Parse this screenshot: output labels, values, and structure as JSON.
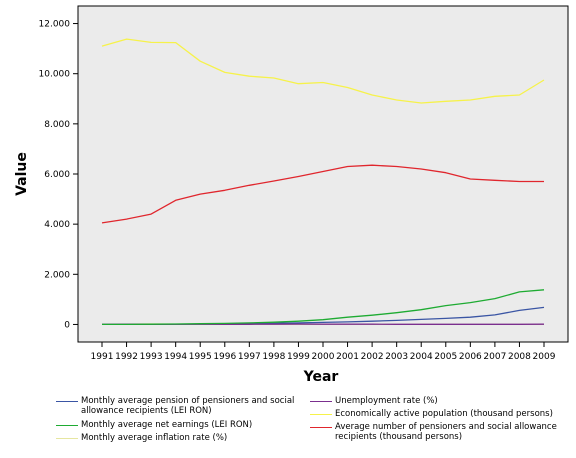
{
  "chart_data": {
    "type": "line",
    "xlabel": "Year",
    "ylabel": "Value",
    "x": [
      1991,
      1992,
      1993,
      1994,
      1995,
      1996,
      1997,
      1998,
      1999,
      2000,
      2001,
      2002,
      2003,
      2004,
      2005,
      2006,
      2007,
      2008,
      2009
    ],
    "ylim": [
      -700,
      12700
    ],
    "yticks": [
      0,
      2000,
      4000,
      6000,
      8000,
      10000,
      12000
    ],
    "ytick_labels": [
      "0",
      "2.000",
      "4.000",
      "6.000",
      "8.000",
      "10.000",
      "12.000"
    ],
    "plot_background": "#ebebeb",
    "series": [
      {
        "name": "Monthly average pension of pensioners and social allowance recipients (LEI RON)",
        "color": "#3a55a4",
        "values": [
          1,
          2,
          5,
          8,
          12,
          18,
          28,
          45,
          60,
          80,
          100,
          130,
          160,
          200,
          240,
          290,
          380,
          560,
          680
        ]
      },
      {
        "name": "Unemployment rate (%)",
        "color": "#7b2f8f",
        "values": [
          3,
          8,
          10,
          11,
          10,
          7,
          7,
          10,
          12,
          11,
          9,
          8,
          7,
          6,
          6,
          5,
          4,
          4,
          8
        ]
      },
      {
        "name": "Monthly average net earnings (LEI RON)",
        "color": "#1eab32",
        "values": [
          2,
          3,
          8,
          18,
          28,
          40,
          60,
          90,
          130,
          190,
          290,
          370,
          470,
          590,
          750,
          870,
          1030,
          1300,
          1380
        ]
      },
      {
        "name": "Economically active population (thousand persons)",
        "color": "#f6f24a",
        "values": [
          11100,
          11380,
          11250,
          11240,
          10500,
          10050,
          9900,
          9830,
          9600,
          9650,
          9450,
          9150,
          8950,
          8830,
          8900,
          8950,
          9100,
          9150,
          9750
        ]
      },
      {
        "name": "Monthly average inflation rate (%)",
        "color": "#e6e6a0",
        "values": [
          15,
          15,
          20,
          10,
          3,
          3,
          10,
          4,
          4,
          3,
          3,
          2,
          1,
          1,
          1,
          1,
          1,
          1,
          1
        ]
      },
      {
        "name": "Average number of pensioners and social allowance recipients (thousand persons)",
        "color": "#e0262d",
        "values": [
          4050,
          4200,
          4400,
          4950,
          5200,
          5350,
          5550,
          5720,
          5900,
          6100,
          6300,
          6350,
          6300,
          6200,
          6050,
          5800,
          5750,
          5700,
          5700
        ]
      }
    ],
    "legend_position": "bottom"
  }
}
